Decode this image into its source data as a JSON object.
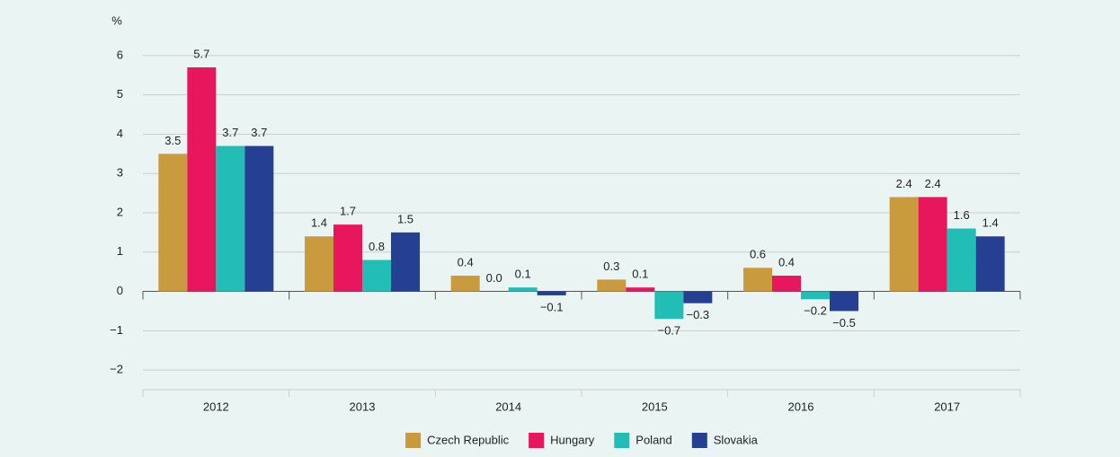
{
  "chart_data": {
    "type": "bar",
    "y_label": "%",
    "categories": [
      "2012",
      "2013",
      "2014",
      "2015",
      "2016",
      "2017"
    ],
    "series": [
      {
        "name": "Czech Republic",
        "color": "#c99a3e",
        "values": [
          3.5,
          1.4,
          0.4,
          0.3,
          0.6,
          2.4
        ],
        "value_labels": [
          "3.5",
          "1.4",
          "0.4",
          "0.3",
          "0.6",
          "2.4"
        ]
      },
      {
        "name": "Hungary",
        "color": "#e8175d",
        "values": [
          5.7,
          1.7,
          0.0,
          0.1,
          0.4,
          2.4
        ],
        "value_labels": [
          "5.7",
          "1.7",
          "0.0",
          "0.1",
          "0.4",
          "2.4"
        ]
      },
      {
        "name": "Poland",
        "color": "#22bdb5",
        "values": [
          3.7,
          0.8,
          0.1,
          -0.7,
          -0.2,
          1.6
        ],
        "value_labels": [
          "3.7",
          "0.8",
          "0.1",
          "−0.7",
          "−0.2",
          "1.6"
        ]
      },
      {
        "name": "Slovakia",
        "color": "#253f93",
        "values": [
          3.7,
          1.5,
          -0.1,
          -0.3,
          -0.5,
          1.4
        ],
        "value_labels": [
          "3.7",
          "1.5",
          "−0.1",
          "−0.3",
          "−0.5",
          "1.4"
        ]
      }
    ],
    "ylim": [
      -2.5,
      6.5
    ],
    "yticks": [
      {
        "value": -2,
        "label": "−2"
      },
      {
        "value": -1,
        "label": "−1"
      },
      0,
      1,
      2,
      3,
      4,
      5,
      6
    ],
    "grid": true
  }
}
